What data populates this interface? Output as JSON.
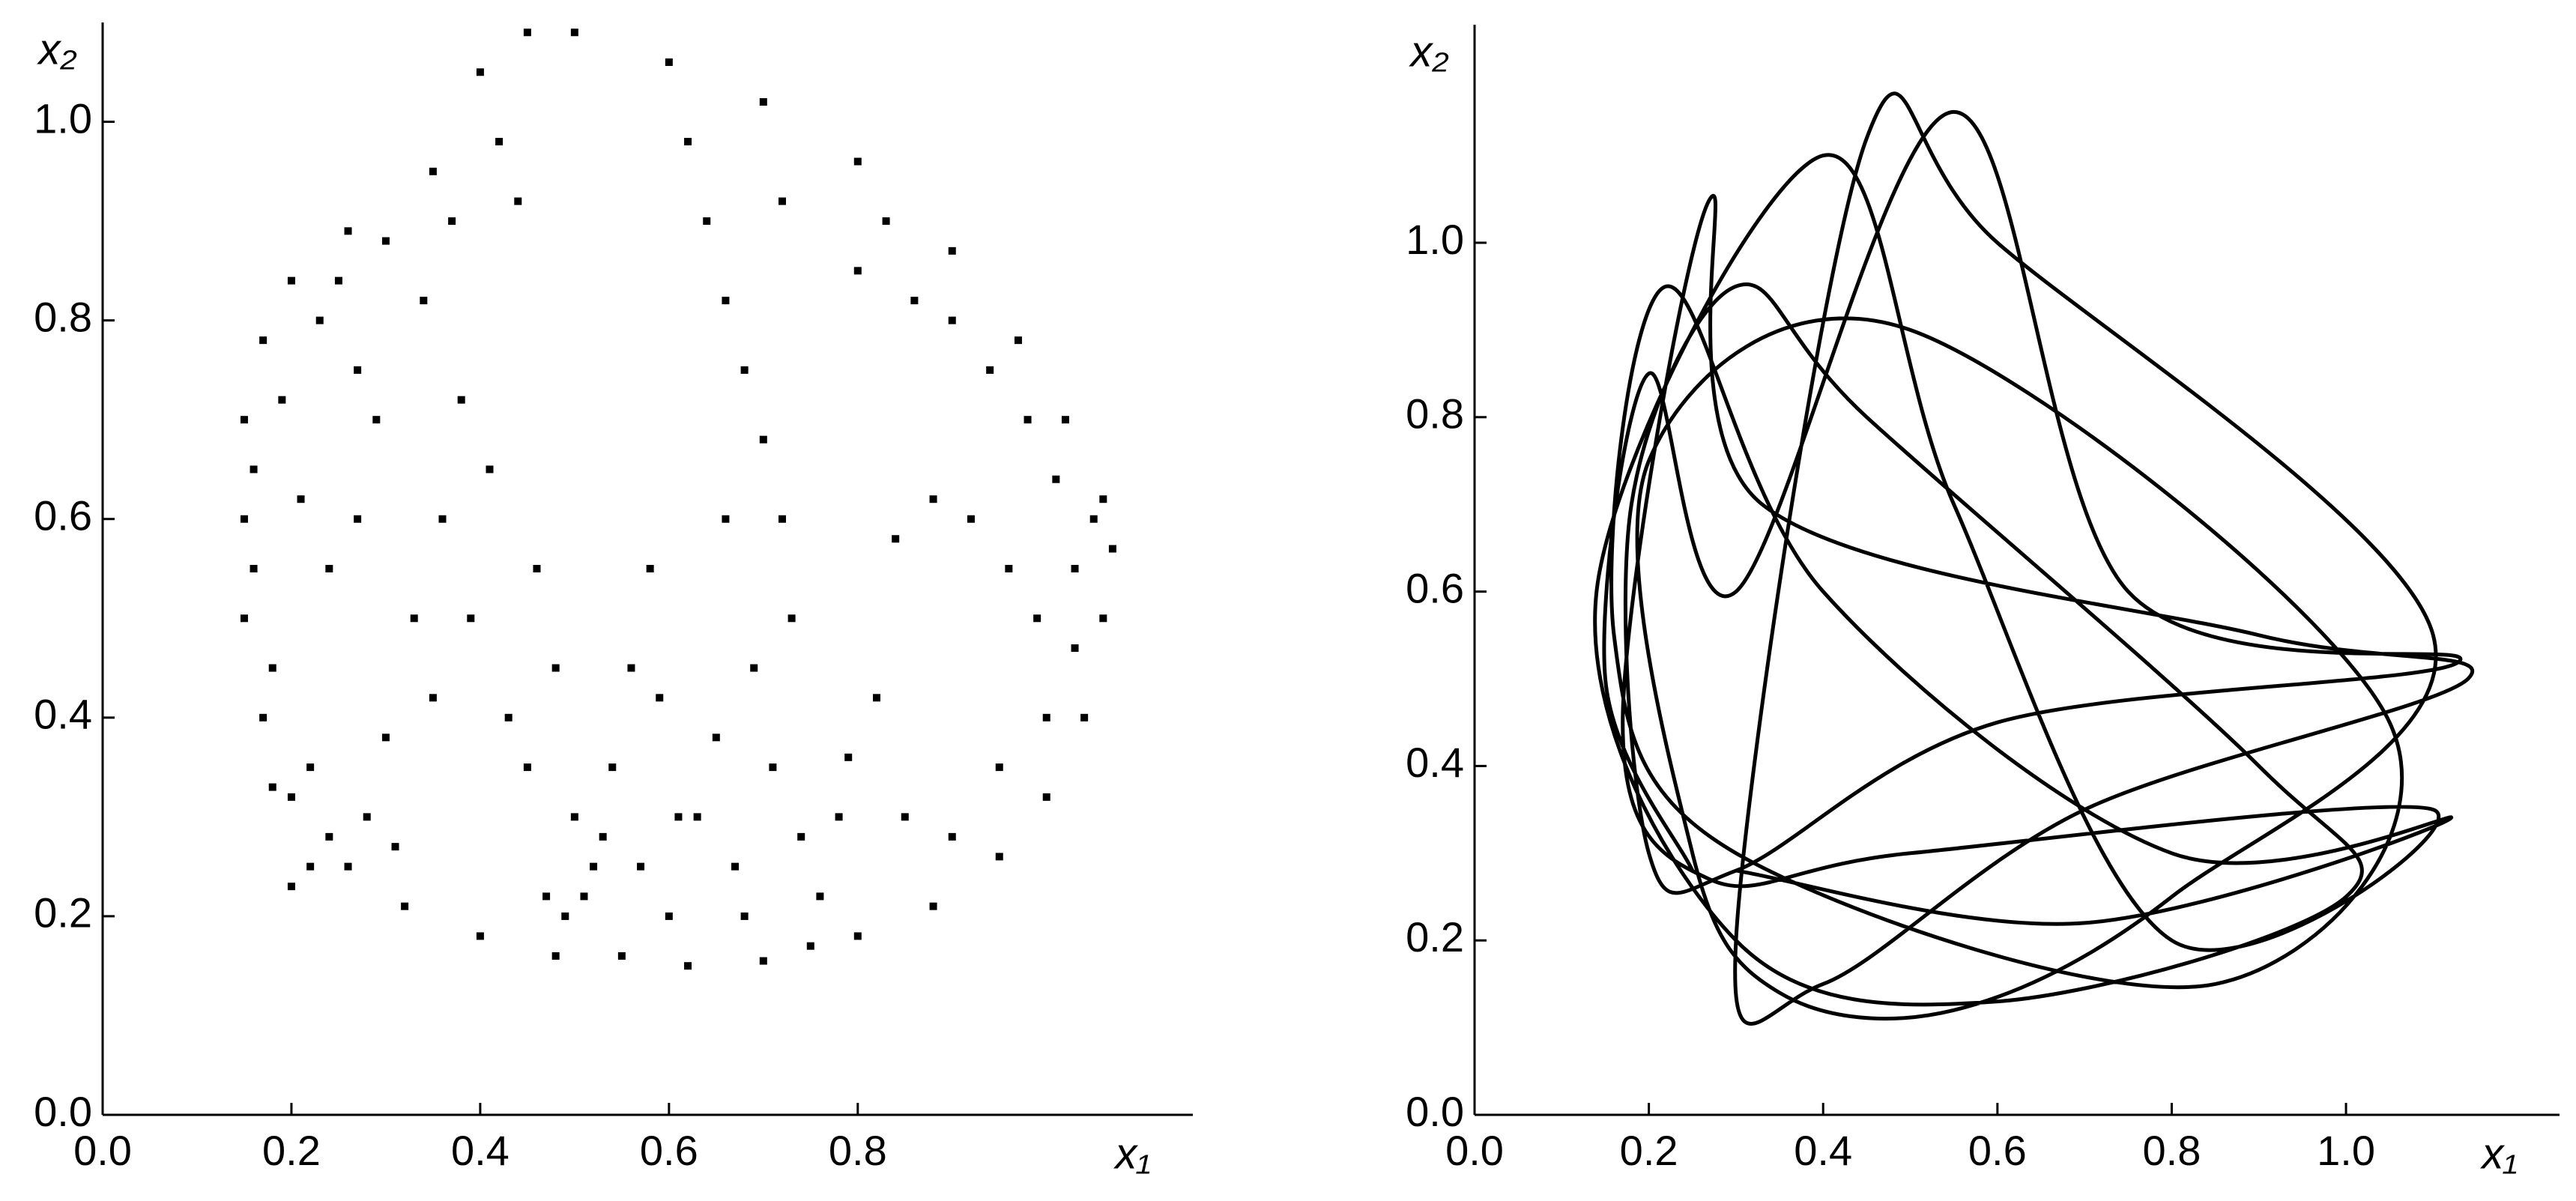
{
  "chart_data": [
    {
      "type": "scatter",
      "xlabel": "x₁",
      "ylabel": "x₂",
      "color": "#000000",
      "xlim": [
        0,
        1.155
      ],
      "ylim": [
        0,
        1.1
      ],
      "xticks": [
        {
          "value": 0,
          "label": "0.0"
        },
        0.2,
        0.4,
        0.6,
        0.8
      ],
      "yticks": [
        {
          "value": 0,
          "label": "0.0"
        },
        0.2,
        0.4,
        0.6,
        0.8,
        {
          "value": 1,
          "label": "1.0"
        }
      ],
      "x": [
        0.15,
        0.15,
        0.17,
        0.2,
        0.26,
        0.3,
        0.35,
        0.4,
        0.45,
        0.5,
        0.6,
        0.7,
        0.8,
        0.9,
        0.97,
        1.02,
        1.06,
        1.07,
        1.06,
        1.04,
        1.0,
        0.95,
        0.88,
        0.8,
        0.7,
        0.62,
        0.55,
        0.48,
        0.4,
        0.32,
        0.26,
        0.2,
        0.17,
        0.15,
        0.16,
        0.16,
        0.18,
        0.19,
        0.21,
        0.23,
        0.25,
        0.27,
        0.29,
        0.22,
        0.24,
        0.28,
        0.31,
        0.33,
        0.36,
        0.38,
        0.34,
        0.37,
        0.42,
        0.44,
        0.41,
        0.46,
        0.48,
        0.45,
        0.5,
        0.52,
        0.47,
        0.43,
        0.39,
        0.35,
        0.3,
        0.27,
        0.24,
        0.22,
        0.2,
        0.18,
        0.62,
        0.64,
        0.66,
        0.68,
        0.7,
        0.72,
        0.73,
        0.69,
        0.65,
        0.63,
        0.67,
        0.71,
        0.74,
        0.76,
        0.78,
        0.8,
        0.83,
        0.86,
        0.9,
        0.94,
        0.98,
        1.01,
        1.03,
        0.99,
        0.96,
        0.92,
        0.88,
        0.84,
        0.82,
        0.79,
        0.85,
        0.9,
        0.95,
        1.0,
        1.03,
        1.05,
        0.58,
        0.56,
        0.54,
        0.57,
        0.6,
        0.61,
        0.59,
        0.53,
        0.51,
        0.49,
        0.66,
        0.72,
        0.68,
        0.75
      ],
      "y": [
        0.6,
        0.7,
        0.78,
        0.84,
        0.89,
        0.88,
        0.95,
        1.05,
        1.09,
        1.09,
        1.06,
        1.02,
        0.96,
        0.87,
        0.78,
        0.7,
        0.62,
        0.57,
        0.5,
        0.4,
        0.32,
        0.26,
        0.21,
        0.18,
        0.155,
        0.15,
        0.16,
        0.16,
        0.18,
        0.21,
        0.25,
        0.32,
        0.4,
        0.5,
        0.55,
        0.65,
        0.45,
        0.72,
        0.62,
        0.8,
        0.84,
        0.75,
        0.7,
        0.35,
        0.28,
        0.3,
        0.27,
        0.5,
        0.6,
        0.72,
        0.82,
        0.9,
        0.98,
        0.92,
        0.65,
        0.55,
        0.45,
        0.35,
        0.3,
        0.25,
        0.22,
        0.4,
        0.5,
        0.42,
        0.38,
        0.6,
        0.55,
        0.25,
        0.23,
        0.33,
        0.98,
        0.9,
        0.82,
        0.75,
        0.68,
        0.6,
        0.5,
        0.45,
        0.38,
        0.3,
        0.25,
        0.35,
        0.28,
        0.22,
        0.3,
        0.85,
        0.9,
        0.82,
        0.8,
        0.75,
        0.7,
        0.64,
        0.55,
        0.5,
        0.55,
        0.6,
        0.62,
        0.58,
        0.42,
        0.36,
        0.3,
        0.28,
        0.35,
        0.4,
        0.47,
        0.6,
        0.55,
        0.45,
        0.35,
        0.25,
        0.2,
        0.3,
        0.42,
        0.28,
        0.22,
        0.2,
        0.6,
        0.92,
        0.2,
        0.17
      ]
    },
    {
      "type": "line",
      "xlabel": "x₁",
      "ylabel": "x₂",
      "color": "#000000",
      "xlim": [
        0,
        1.245
      ],
      "ylim": [
        0,
        1.25
      ],
      "xticks": [
        {
          "value": 0,
          "label": "0.0"
        },
        0.2,
        0.4,
        0.6,
        0.8,
        {
          "value": 1,
          "label": "1.0"
        }
      ],
      "yticks": [
        {
          "value": 0,
          "label": "0.0"
        },
        0.2,
        0.4,
        0.6,
        0.8,
        {
          "value": 1,
          "label": "1.0"
        }
      ],
      "x": [
        0.25,
        0.15,
        0.2,
        0.3,
        0.55,
        0.75,
        1.13,
        0.6,
        0.3,
        0.2,
        0.18,
        0.3,
        0.45,
        0.9,
        1.0,
        0.6,
        0.3,
        0.14,
        0.4,
        0.55,
        0.8,
        1.1,
        0.5,
        0.27,
        0.17,
        0.27,
        0.33,
        0.9,
        1.14,
        0.7,
        0.4,
        0.3,
        0.45,
        0.6,
        1.1,
        0.8,
        0.55,
        0.35,
        0.25,
        0.2,
        0.5,
        1.05,
        0.85,
        0.3,
        0.16,
        0.22,
        0.4,
        0.8,
        1.12,
        0.7,
        0.3
      ],
      "y": [
        0.28,
        0.5,
        0.85,
        0.6,
        1.15,
        0.6,
        0.52,
        0.45,
        0.28,
        0.3,
        0.7,
        0.95,
        0.8,
        0.4,
        0.25,
        0.13,
        0.2,
        0.6,
        1.1,
        0.7,
        0.2,
        0.35,
        0.3,
        0.27,
        0.45,
        1.05,
        0.7,
        0.55,
        0.5,
        0.35,
        0.15,
        0.2,
        1.12,
        1.0,
        0.55,
        0.25,
        0.12,
        0.14,
        0.3,
        0.75,
        0.9,
        0.45,
        0.15,
        0.3,
        0.55,
        0.95,
        0.6,
        0.3,
        0.34,
        0.22,
        0.28
      ]
    }
  ]
}
